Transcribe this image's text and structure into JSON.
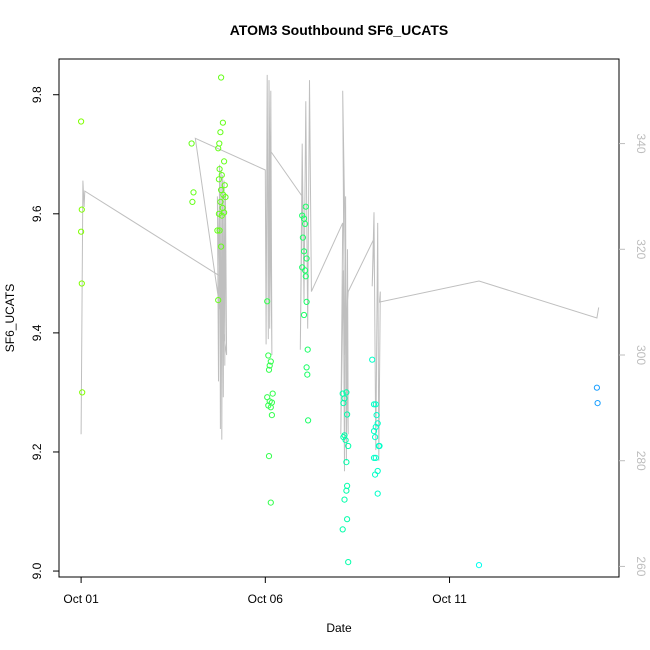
{
  "chart_data": {
    "type": "scatter",
    "title": "ATOM3 Southbound SF6_UCATS",
    "xlabel": "Date",
    "ylabel": "SF6_UCATS",
    "xlim": [
      -0.6,
      14.6
    ],
    "ylim": [
      8.99,
      9.86
    ],
    "y2lim": [
      258,
      356
    ],
    "x_ticks": [
      {
        "value": 0,
        "label": "Oct 01"
      },
      {
        "value": 5,
        "label": "Oct 06"
      },
      {
        "value": 10,
        "label": "Oct 11"
      }
    ],
    "y_ticks": [
      9.0,
      9.2,
      9.4,
      9.6,
      9.8
    ],
    "y2_ticks": [
      260,
      280,
      300,
      320,
      340
    ],
    "grid": false,
    "legend": "none",
    "point_series": [
      {
        "color": "#7fff00",
        "points": [
          [
            0.0,
            9.755
          ],
          [
            0.02,
            9.607
          ],
          [
            0.0,
            9.57
          ],
          [
            0.02,
            9.483
          ],
          [
            0.03,
            9.3
          ]
        ]
      },
      {
        "color": "#66ff1a",
        "points": [
          [
            3.0,
            9.718
          ],
          [
            3.05,
            9.636
          ],
          [
            3.02,
            9.62
          ],
          [
            3.8,
            9.829
          ],
          [
            3.85,
            9.753
          ],
          [
            3.78,
            9.737
          ],
          [
            3.75,
            9.718
          ],
          [
            3.72,
            9.71
          ],
          [
            3.88,
            9.688
          ],
          [
            3.76,
            9.675
          ],
          [
            3.82,
            9.665
          ],
          [
            3.74,
            9.658
          ],
          [
            3.9,
            9.648
          ],
          [
            3.8,
            9.64
          ],
          [
            3.86,
            9.632
          ],
          [
            3.92,
            9.628
          ],
          [
            3.78,
            9.62
          ],
          [
            3.84,
            9.61
          ],
          [
            3.88,
            9.602
          ],
          [
            3.74,
            9.6
          ],
          [
            3.82,
            9.597
          ],
          [
            3.7,
            9.572
          ],
          [
            3.76,
            9.572
          ],
          [
            3.8,
            9.545
          ],
          [
            3.72,
            9.455
          ]
        ]
      },
      {
        "color": "#33ff4d",
        "points": [
          [
            5.05,
            9.453
          ],
          [
            5.08,
            9.362
          ],
          [
            5.15,
            9.352
          ],
          [
            5.12,
            9.345
          ],
          [
            5.1,
            9.338
          ],
          [
            5.2,
            9.298
          ],
          [
            5.05,
            9.292
          ],
          [
            5.12,
            9.285
          ],
          [
            5.18,
            9.283
          ],
          [
            5.08,
            9.278
          ],
          [
            5.15,
            9.275
          ],
          [
            5.18,
            9.262
          ],
          [
            5.1,
            9.193
          ],
          [
            5.15,
            9.115
          ]
        ]
      },
      {
        "color": "#1aff66",
        "points": [
          [
            6.0,
            9.597
          ],
          [
            6.05,
            9.592
          ],
          [
            6.1,
            9.612
          ],
          [
            6.08,
            9.583
          ],
          [
            6.02,
            9.56
          ],
          [
            6.05,
            9.537
          ],
          [
            6.12,
            9.525
          ],
          [
            6.0,
            9.51
          ],
          [
            6.08,
            9.505
          ],
          [
            6.1,
            9.495
          ],
          [
            6.12,
            9.452
          ],
          [
            6.05,
            9.43
          ],
          [
            6.15,
            9.372
          ],
          [
            6.12,
            9.342
          ],
          [
            6.14,
            9.33
          ],
          [
            6.16,
            9.253
          ]
        ]
      },
      {
        "color": "#00ffaa",
        "points": [
          [
            7.1,
            9.298
          ],
          [
            7.2,
            9.3
          ],
          [
            7.15,
            9.29
          ],
          [
            7.12,
            9.282
          ],
          [
            7.22,
            9.263
          ],
          [
            7.15,
            9.228
          ],
          [
            7.12,
            9.225
          ],
          [
            7.18,
            9.22
          ],
          [
            7.25,
            9.21
          ],
          [
            7.2,
            9.183
          ],
          [
            7.22,
            9.143
          ],
          [
            7.2,
            9.135
          ],
          [
            7.15,
            9.12
          ],
          [
            7.22,
            9.087
          ],
          [
            7.1,
            9.07
          ],
          [
            7.25,
            9.015
          ]
        ]
      },
      {
        "color": "#00ffc8",
        "points": [
          [
            7.9,
            9.355
          ],
          [
            7.95,
            9.28
          ],
          [
            8.0,
            9.28
          ],
          [
            8.02,
            9.262
          ],
          [
            8.05,
            9.248
          ],
          [
            8.0,
            9.242
          ],
          [
            7.95,
            9.235
          ],
          [
            7.98,
            9.225
          ],
          [
            8.1,
            9.21
          ],
          [
            8.08,
            9.21
          ],
          [
            7.95,
            9.19
          ],
          [
            8.0,
            9.19
          ],
          [
            8.05,
            9.168
          ],
          [
            7.98,
            9.162
          ],
          [
            8.05,
            9.13
          ]
        ]
      },
      {
        "color": "#00ffee",
        "points": [
          [
            10.8,
            9.01
          ]
        ]
      },
      {
        "color": "#1a9fff",
        "points": [
          [
            14.0,
            9.308
          ],
          [
            14.02,
            9.282
          ]
        ]
      }
    ],
    "line_series": {
      "color": "#bfbfbf",
      "axis": "right",
      "points": [
        [
          0.0,
          285
        ],
        [
          0.05,
          333
        ],
        [
          0.08,
          328
        ],
        [
          0.1,
          331
        ],
        [
          3.75,
          315
        ],
        [
          3.7,
          330
        ],
        [
          3.73,
          295
        ],
        [
          3.76,
          336
        ],
        [
          3.78,
          286
        ],
        [
          3.8,
          335
        ],
        [
          3.82,
          284
        ],
        [
          3.84,
          334
        ],
        [
          3.86,
          292
        ],
        [
          3.88,
          333
        ],
        [
          3.9,
          298
        ],
        [
          3.92,
          330
        ],
        [
          3.95,
          300
        ],
        [
          3.1,
          341
        ],
        [
          5.0,
          335
        ],
        [
          5.02,
          302
        ],
        [
          5.05,
          353
        ],
        [
          5.08,
          303
        ],
        [
          5.1,
          352
        ],
        [
          5.12,
          305
        ],
        [
          5.15,
          350
        ],
        [
          5.18,
          300
        ],
        [
          5.1,
          352
        ],
        [
          5.1,
          339
        ],
        [
          6.0,
          330
        ],
        [
          5.95,
          301
        ],
        [
          6.0,
          340
        ],
        [
          6.05,
          310
        ],
        [
          6.1,
          348
        ],
        [
          6.15,
          305
        ],
        [
          6.2,
          352
        ],
        [
          6.25,
          312
        ],
        [
          7.1,
          325
        ],
        [
          7.05,
          285
        ],
        [
          7.12,
          316
        ],
        [
          7.15,
          278
        ],
        [
          7.18,
          330
        ],
        [
          7.2,
          280
        ],
        [
          7.23,
          320
        ],
        [
          7.25,
          285
        ],
        [
          7.1,
          350
        ],
        [
          7.15,
          300
        ],
        [
          7.25,
          312
        ],
        [
          7.95,
          322
        ],
        [
          7.9,
          313
        ],
        [
          7.95,
          327
        ],
        [
          8.0,
          282
        ],
        [
          8.05,
          325
        ],
        [
          8.08,
          280
        ],
        [
          8.12,
          312
        ],
        [
          8.1,
          310
        ],
        [
          10.8,
          314
        ],
        [
          14.0,
          307
        ],
        [
          14.05,
          309
        ]
      ]
    }
  }
}
